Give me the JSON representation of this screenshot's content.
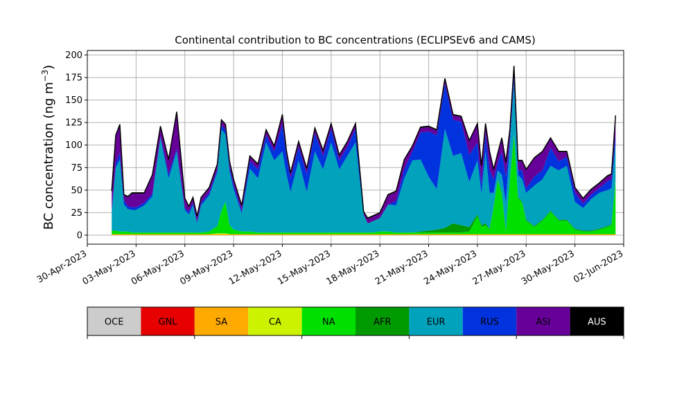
{
  "chart_data": {
    "type": "area",
    "title": "Continental contribution to BC concentrations (ECLIPSEv6 and CAMS)",
    "ylabel_main": "BC concentration (ng m",
    "ylabel_sup": "−3",
    "ylabel_close": ")",
    "xlabel": "",
    "ylim": [
      -10,
      205
    ],
    "xlim": [
      "2023-04-30T00:00",
      "2023-06-02T00:00"
    ],
    "yticks": [
      0,
      25,
      50,
      75,
      100,
      125,
      150,
      175,
      200
    ],
    "xticks": [
      "2023-04-30",
      "2023-05-03",
      "2023-05-06",
      "2023-05-09",
      "2023-05-12",
      "2023-05-15",
      "2023-05-18",
      "2023-05-21",
      "2023-05-24",
      "2023-05-27",
      "2023-05-30",
      "2023-06-02"
    ],
    "xtick_labels": [
      "30-Apr-2023",
      "03-May-2023",
      "06-May-2023",
      "09-May-2023",
      "12-May-2023",
      "15-May-2023",
      "18-May-2023",
      "21-May-2023",
      "24-May-2023",
      "27-May-2023",
      "30-May-2023",
      "02-Jun-2023"
    ],
    "grid": true,
    "legend_position": "below",
    "series": [
      {
        "name": "OCE",
        "color": "#cccccc"
      },
      {
        "name": "GNL",
        "color": "#e60000"
      },
      {
        "name": "SA",
        "color": "#ffaa00"
      },
      {
        "name": "CA",
        "color": "#ccf200"
      },
      {
        "name": "NA",
        "color": "#00e000"
      },
      {
        "name": "AFR",
        "color": "#009900"
      },
      {
        "name": "EUR",
        "color": "#00a3bb"
      },
      {
        "name": "RUS",
        "color": "#0033dd"
      },
      {
        "name": "ASI",
        "color": "#660099"
      },
      {
        "name": "AUS",
        "color": "#000000"
      }
    ],
    "x": [
      "2023-05-01T12:00",
      "2023-05-01T18:00",
      "2023-05-02T00:00",
      "2023-05-02T06:00",
      "2023-05-02T12:00",
      "2023-05-02T18:00",
      "2023-05-03T00:00",
      "2023-05-03T12:00",
      "2023-05-04T00:00",
      "2023-05-04T12:00",
      "2023-05-05T00:00",
      "2023-05-05T12:00",
      "2023-05-06T00:00",
      "2023-05-06T06:00",
      "2023-05-06T12:00",
      "2023-05-06T18:00",
      "2023-05-07T00:00",
      "2023-05-07T12:00",
      "2023-05-08T00:00",
      "2023-05-08T06:00",
      "2023-05-08T12:00",
      "2023-05-08T18:00",
      "2023-05-09T00:00",
      "2023-05-09T12:00",
      "2023-05-10T00:00",
      "2023-05-10T12:00",
      "2023-05-11T00:00",
      "2023-05-11T12:00",
      "2023-05-12T00:00",
      "2023-05-12T06:00",
      "2023-05-12T12:00",
      "2023-05-13T00:00",
      "2023-05-13T12:00",
      "2023-05-14T00:00",
      "2023-05-14T12:00",
      "2023-05-15T00:00",
      "2023-05-15T12:00",
      "2023-05-16T00:00",
      "2023-05-16T12:00",
      "2023-05-17T00:00",
      "2023-05-17T06:00",
      "2023-05-17T12:00",
      "2023-05-18T00:00",
      "2023-05-18T12:00",
      "2023-05-19T00:00",
      "2023-05-19T12:00",
      "2023-05-20T00:00",
      "2023-05-20T12:00",
      "2023-05-21T00:00",
      "2023-05-21T12:00",
      "2023-05-22T00:00",
      "2023-05-22T12:00",
      "2023-05-23T00:00",
      "2023-05-23T12:00",
      "2023-05-24T00:00",
      "2023-05-24T06:00",
      "2023-05-24T12:00",
      "2023-05-24T18:00",
      "2023-05-25T00:00",
      "2023-05-25T06:00",
      "2023-05-25T12:00",
      "2023-05-25T18:00",
      "2023-05-26T00:00",
      "2023-05-26T06:00",
      "2023-05-26T12:00",
      "2023-05-26T18:00",
      "2023-05-27T00:00",
      "2023-05-27T12:00",
      "2023-05-28T00:00",
      "2023-05-28T12:00",
      "2023-05-29T00:00",
      "2023-05-29T12:00",
      "2023-05-30T00:00",
      "2023-05-30T12:00",
      "2023-05-31T00:00",
      "2023-05-31T12:00",
      "2023-06-01T00:00",
      "2023-06-01T06:00",
      "2023-06-01T12:00"
    ],
    "values": {
      "SA": [
        1,
        1,
        1,
        1,
        1,
        1,
        1,
        1,
        1,
        1,
        1,
        1,
        1,
        1,
        1,
        1,
        1,
        1,
        1,
        1,
        1,
        1,
        1,
        1,
        1,
        1,
        1,
        1,
        1,
        1,
        1,
        1,
        1,
        1,
        1,
        1,
        1,
        1,
        1,
        1,
        1,
        1,
        1,
        1,
        1,
        1,
        1,
        1,
        1,
        1,
        1,
        1,
        1,
        1,
        1,
        1,
        1,
        1,
        1,
        1,
        1,
        1,
        1,
        1,
        1,
        1,
        1,
        1,
        1,
        1,
        1,
        1,
        1,
        1,
        1,
        1,
        1,
        1,
        1
      ],
      "CA": [
        0,
        0,
        0,
        0,
        0,
        0,
        0,
        0,
        0,
        0,
        0,
        0,
        0,
        0,
        0,
        0,
        0,
        0,
        1,
        1,
        1,
        0,
        0,
        0,
        0,
        0,
        0,
        0,
        0,
        0,
        0,
        0,
        0,
        0,
        0,
        0,
        0,
        0,
        0,
        0,
        0,
        0,
        0,
        0,
        0,
        0,
        0,
        0,
        0,
        0,
        0,
        0,
        0,
        0,
        0,
        0,
        0,
        0,
        0,
        0,
        0,
        0,
        0,
        0,
        0,
        0,
        0,
        0,
        0,
        0,
        0,
        0,
        0,
        0,
        0,
        0,
        0,
        0,
        0
      ],
      "NA": [
        4,
        4,
        3,
        3,
        3,
        2,
        2,
        2,
        2,
        2,
        2,
        2,
        2,
        2,
        2,
        2,
        2,
        3,
        8,
        25,
        35,
        10,
        5,
        3,
        3,
        2,
        2,
        2,
        2,
        2,
        2,
        2,
        2,
        2,
        2,
        2,
        2,
        2,
        2,
        2,
        2,
        2,
        3,
        3,
        2,
        2,
        2,
        2,
        2,
        2,
        2,
        2,
        2,
        3,
        20,
        8,
        10,
        5,
        30,
        60,
        45,
        3,
        60,
        110,
        40,
        35,
        15,
        8,
        15,
        25,
        15,
        15,
        5,
        3,
        3,
        5,
        8,
        10,
        60
      ],
      "AFR": [
        0,
        0,
        0,
        0,
        0,
        0,
        0,
        0,
        0,
        0,
        0,
        0,
        0,
        0,
        0,
        0,
        0,
        0,
        0,
        0,
        0,
        0,
        0,
        0,
        0,
        0,
        0,
        0,
        0,
        0,
        0,
        0,
        0,
        0,
        0,
        0,
        0,
        0,
        0,
        0,
        0,
        0,
        0,
        0,
        0,
        0,
        0,
        1,
        2,
        3,
        5,
        10,
        8,
        5,
        2,
        2,
        2,
        1,
        1,
        1,
        1,
        1,
        1,
        1,
        1,
        1,
        1,
        1,
        1,
        1,
        1,
        1,
        1,
        1,
        1,
        1,
        1,
        1,
        1
      ],
      "EUR": [
        20,
        70,
        80,
        30,
        25,
        25,
        25,
        30,
        40,
        105,
        60,
        90,
        25,
        20,
        30,
        10,
        30,
        40,
        60,
        90,
        75,
        60,
        45,
        20,
        70,
        60,
        100,
        80,
        90,
        65,
        45,
        80,
        45,
        90,
        70,
        100,
        70,
        85,
        100,
        20,
        10,
        12,
        15,
        30,
        30,
        60,
        80,
        80,
        60,
        45,
        110,
        75,
        80,
        50,
        60,
        35,
        80,
        40,
        15,
        10,
        20,
        30,
        40,
        55,
        25,
        25,
        30,
        45,
        45,
        50,
        55,
        60,
        30,
        25,
        35,
        40,
        40,
        40,
        40
      ],
      "RUS": [
        3,
        5,
        8,
        5,
        3,
        3,
        3,
        3,
        3,
        2,
        5,
        3,
        2,
        3,
        3,
        2,
        3,
        3,
        3,
        5,
        5,
        5,
        5,
        3,
        8,
        10,
        8,
        10,
        30,
        20,
        15,
        15,
        20,
        20,
        15,
        15,
        10,
        10,
        15,
        0,
        0,
        0,
        0,
        0,
        5,
        10,
        10,
        30,
        50,
        60,
        50,
        40,
        35,
        30,
        20,
        10,
        20,
        25,
        15,
        8,
        25,
        30,
        5,
        10,
        5,
        10,
        5,
        10,
        10,
        20,
        10,
        10,
        10,
        5,
        5,
        5,
        10,
        10,
        10
      ],
      "ASI": [
        20,
        30,
        30,
        5,
        10,
        15,
        15,
        10,
        20,
        10,
        15,
        40,
        10,
        5,
        5,
        5,
        5,
        5,
        5,
        5,
        5,
        5,
        5,
        5,
        5,
        5,
        5,
        5,
        10,
        5,
        5,
        5,
        5,
        5,
        5,
        5,
        5,
        5,
        5,
        2,
        5,
        5,
        5,
        10,
        10,
        10,
        5,
        5,
        5,
        5,
        5,
        5,
        5,
        15,
        20,
        20,
        10,
        20,
        10,
        10,
        15,
        15,
        10,
        10,
        10,
        10,
        20,
        20,
        20,
        10,
        10,
        5,
        5,
        5,
        5,
        5,
        5,
        5,
        20
      ],
      "AUS": [
        1,
        1,
        1,
        1,
        1,
        1,
        1,
        1,
        1,
        1,
        1,
        1,
        1,
        1,
        1,
        1,
        1,
        1,
        1,
        1,
        1,
        1,
        1,
        1,
        1,
        1,
        1,
        1,
        1,
        1,
        1,
        1,
        1,
        1,
        1,
        1,
        1,
        1,
        1,
        1,
        1,
        1,
        1,
        1,
        1,
        1,
        1,
        1,
        1,
        1,
        1,
        1,
        1,
        1,
        1,
        1,
        1,
        1,
        1,
        1,
        1,
        1,
        1,
        1,
        1,
        1,
        1,
        1,
        1,
        1,
        1,
        1,
        1,
        1,
        1,
        1,
        1,
        1,
        1
      ]
    }
  }
}
